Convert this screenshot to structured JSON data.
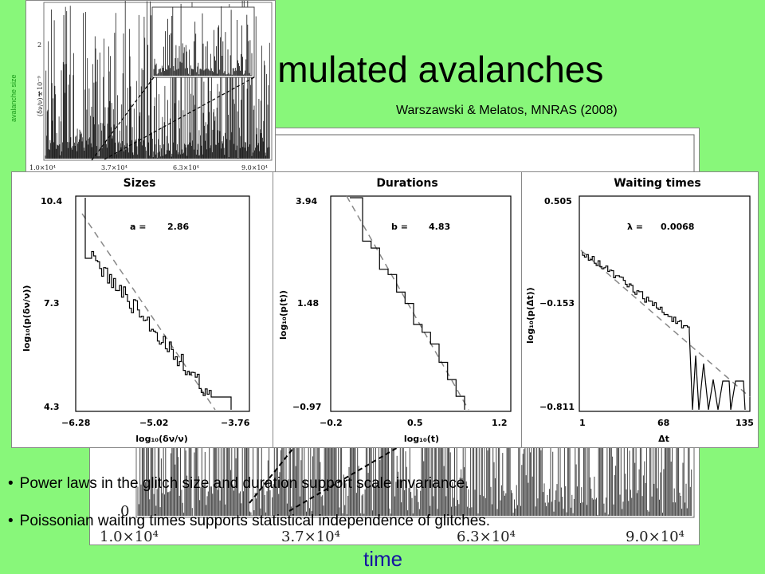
{
  "slide": {
    "title": "imulated avalanches",
    "citation": "Warszawski & Melatos, MNRAS (2008)",
    "x_axis_title": "time",
    "bullets": [
      "Power laws in the glitch size and duration support scale invariance.",
      "Poissonian waiting times supports statistical independence of glitches."
    ],
    "colors": {
      "background": "#88f77a",
      "axis_title": "#1515a0",
      "text": "#000000"
    }
  },
  "timeseries_inset": {
    "ylabel": "avalanche size",
    "ylabel_units": "(δν/ν) x 10⁻⁹",
    "y_ticks": [
      "2",
      "1"
    ],
    "x_ticks": [
      "1.0×10⁴",
      "3.7×10⁴",
      "6.3×10⁴",
      "9.0×10⁴"
    ]
  },
  "timeseries_main": {
    "y_tick": "0",
    "x_ticks": [
      "1.0×10⁴",
      "3.7×10⁴",
      "6.3×10⁴",
      "9.0×10⁴"
    ]
  },
  "histograms": {
    "sizes": {
      "title": "Sizes",
      "fit_label": "a =",
      "fit_value": "2.86",
      "ylabel": "log₁₀(p(δν/ν))",
      "xlabel": "log₁₀(δν/ν)",
      "y_ticks": [
        "10.4",
        "7.3",
        "4.3"
      ],
      "x_ticks": [
        "−6.28",
        "−5.02",
        "−3.76"
      ]
    },
    "durations": {
      "title": "Durations",
      "fit_label": "b =",
      "fit_value": "4.83",
      "ylabel": "log₁₀(p(t))",
      "xlabel": "log₁₀(t)",
      "y_ticks": [
        "3.94",
        "1.48",
        "−0.97"
      ],
      "x_ticks": [
        "−0.2",
        "0.5",
        "1.2"
      ]
    },
    "waiting": {
      "title": "Waiting times",
      "fit_label": "λ =",
      "fit_value": "0.0068",
      "ylabel": "log₁₀(p(Δt))",
      "xlabel": "Δt",
      "y_ticks": [
        "0.505",
        "−0.153",
        "−0.811"
      ],
      "x_ticks": [
        "1",
        "68",
        "135"
      ]
    }
  }
}
